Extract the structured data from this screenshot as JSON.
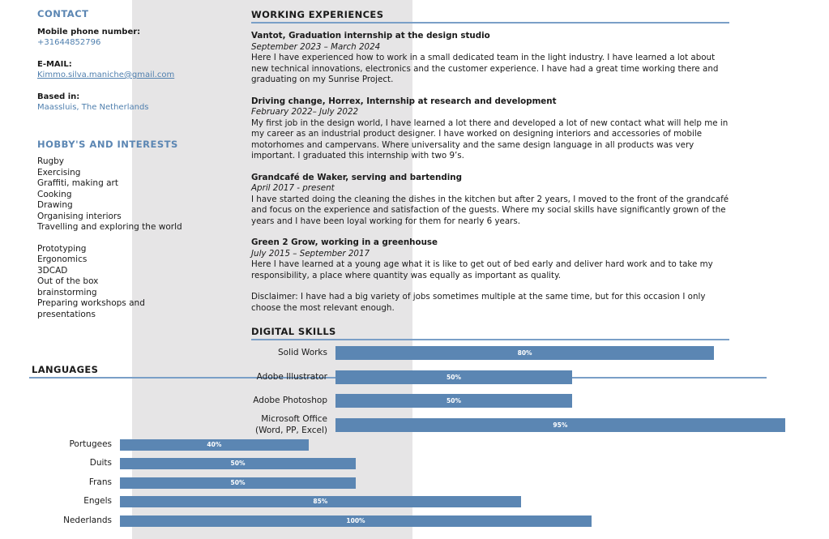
{
  "contact": {
    "title": "CONTACT",
    "phone_label": "Mobile phone number:",
    "phone": "+31644852796",
    "email_label": "E-MAIL:",
    "email": "Kimmo.silva.maniche@gmail.com",
    "based_label": "Based in:",
    "based": "Maassluis, The Netherlands"
  },
  "hobbies": {
    "title": "HOBBY'S AND INTERESTS",
    "items": [
      "Rugby",
      "Exercising",
      "Graffiti, making art",
      "Cooking",
      "Drawing",
      "Organising interiors",
      "Travelling and exploring the world"
    ],
    "items2": [
      "Prototyping",
      "Ergonomics",
      "3DCAD",
      "Out of the box brainstorming",
      "Preparing workshops and presentations"
    ]
  },
  "work": {
    "title": "WORKING EXPERIENCES",
    "jobs": [
      {
        "title": "Vantot, Graduation internship at the design studio",
        "date": "September 2023 – March 2024",
        "text": "Here I have experienced how to work in a small dedicated team in the light industry. I have learned a lot about new technical innovations, electronics and the customer experience. I have had a great time working there and graduating on my Sunrise Project."
      },
      {
        "title": "Driving change, Horrex, Internship at research and development",
        "date": "February 2022– July 2022",
        "text": "My first job in the design world, I have learned a lot there and developed a lot of new contact what will help me in my career as an industrial product designer. I have worked on designing interiors and accessories of mobile motorhomes and campervans. Where universality and the same design language in all products was very important. I graduated this internship with two 9’s."
      },
      {
        "title": "Grandcafé de Waker, serving and bartending",
        "date": "April 2017 - present",
        "text": "I have started doing the cleaning the dishes in the kitchen but after 2 years, I moved to the front of the grandcafé and focus on the experience and satisfaction of the guests. Where my social skills have significantly grown of the years and I have been loyal working for them for nearly 6 years."
      },
      {
        "title": "Green 2 Grow, working in a greenhouse",
        "date": "July 2015 – September 2017",
        "text": "Here I have learned at a young age what it is like to get out of bed early and deliver hard work and  to take my responsibility, a place where quantity was equally as important as quality."
      }
    ],
    "disclaimer": "Disclaimer: I have had a big variety of jobs sometimes multiple at the same time, but for this occasion I only choose the most relevant enough."
  },
  "chart_data": [
    {
      "type": "bar",
      "title": "DIGITAL SKILLS",
      "orientation": "horizontal",
      "categories": [
        "Solid Works",
        "Adobe Illustrator",
        "Adobe Photoshop",
        "Microsoft Office (Word, PP, Excel)"
      ],
      "values": [
        80,
        50,
        50,
        95
      ],
      "value_labels": [
        "80%",
        "50%",
        "50%",
        "95%"
      ],
      "color": "#5b86b3"
    },
    {
      "type": "bar",
      "title": "LANGUAGES",
      "orientation": "horizontal",
      "categories": [
        "Portugees",
        "Duits",
        "Frans",
        "Engels",
        "Nederlands"
      ],
      "values": [
        40,
        50,
        50,
        85,
        100
      ],
      "value_labels": [
        "40%",
        "50%",
        "50%",
        "85%",
        "100%"
      ],
      "color": "#5b86b3"
    }
  ]
}
